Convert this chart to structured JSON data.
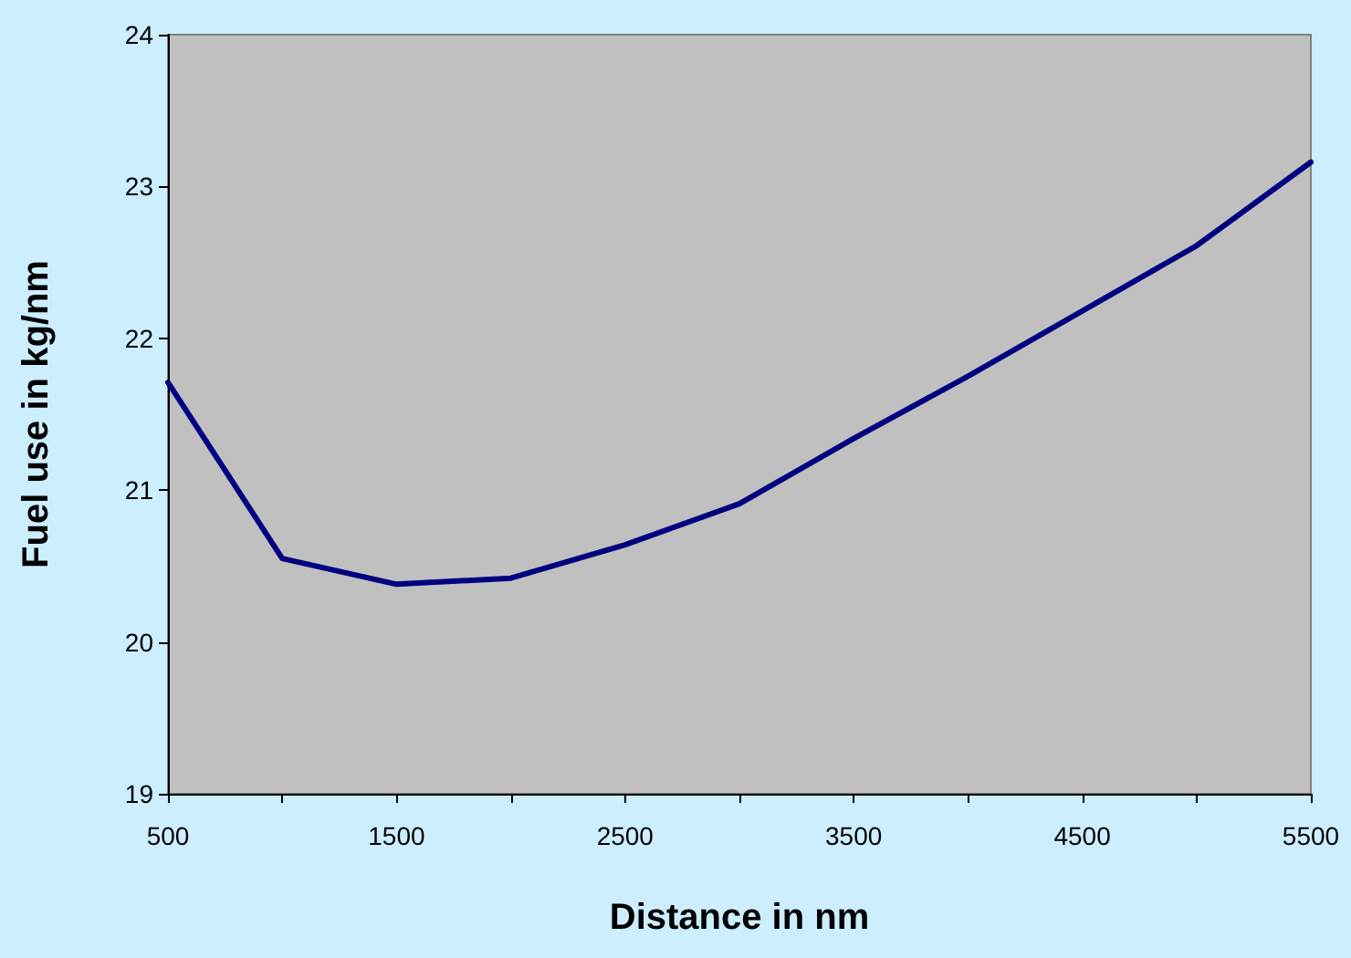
{
  "chart_data": {
    "type": "line",
    "xlabel": "Distance in nm",
    "ylabel": "Fuel use in kg/nm",
    "x": [
      500,
      1000,
      1500,
      2000,
      2500,
      3000,
      3500,
      4000,
      4500,
      5000,
      5500
    ],
    "series": [
      {
        "color": "#000080",
        "values": [
          21.71,
          20.55,
          20.38,
          20.42,
          20.64,
          20.91,
          21.34,
          21.75,
          22.18,
          22.61,
          23.16
        ]
      }
    ],
    "xlim": [
      500,
      5500
    ],
    "xticks": [
      500,
      {
        "value": 1000,
        "label": null
      },
      1500,
      {
        "value": 2000,
        "label": null
      },
      2500,
      {
        "value": 3000,
        "label": null
      },
      3500,
      {
        "value": 4000,
        "label": null
      },
      4500,
      {
        "value": 5000,
        "label": null
      },
      5500
    ],
    "ylim": [
      19,
      24
    ],
    "yticks": [
      19,
      20,
      21,
      22,
      23,
      24
    ],
    "grid": false,
    "marker": "none",
    "line_style": "solid"
  }
}
